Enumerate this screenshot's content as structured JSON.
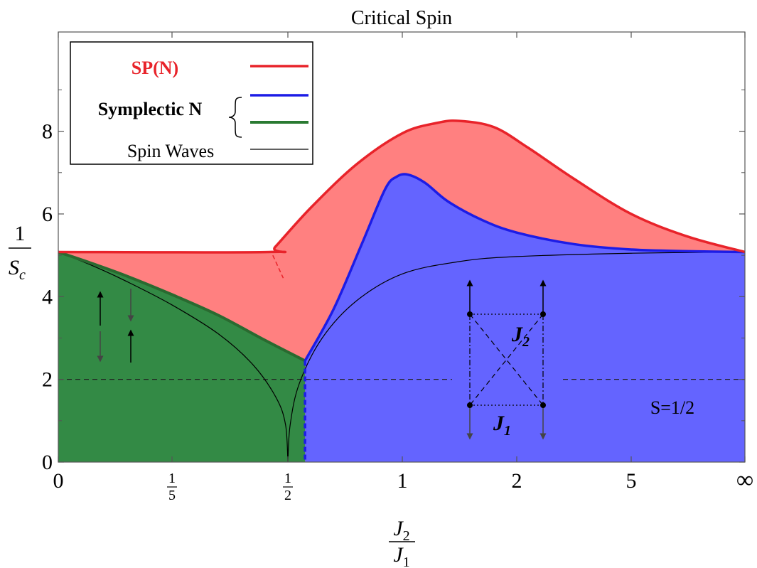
{
  "chart_data": {
    "type": "area",
    "title": "Critical Spin",
    "xlabel": {
      "numerator": "J",
      "numerator_sub": "2",
      "denominator": "J",
      "denominator_sub": "1"
    },
    "ylabel": {
      "numerator": "1",
      "denominator": "S",
      "denominator_sub": "c"
    },
    "ylim": [
      0,
      10.4
    ],
    "xlim": [
      0,
      6
    ],
    "yticks": [
      "0",
      "2",
      "4",
      "6",
      "8"
    ],
    "xticks": [
      {
        "pos": 0,
        "label": "0"
      },
      {
        "pos": 1,
        "num": "1",
        "den": "5"
      },
      {
        "pos": 2,
        "num": "1",
        "den": "2"
      },
      {
        "pos": 3,
        "label": "1"
      },
      {
        "pos": 4,
        "label": "2"
      },
      {
        "pos": 5,
        "label": "5"
      },
      {
        "pos": 6,
        "label": "∞"
      }
    ],
    "grid": false,
    "legend": {
      "placement": "top-left",
      "entries": [
        {
          "name": "SP(N)",
          "color": "#e8232a"
        },
        {
          "name": "Symplectic N",
          "colors": [
            "#1c1ce6",
            "#2a7a32"
          ]
        },
        {
          "name": "Spin Waves",
          "color": "#000000"
        }
      ]
    },
    "series": [
      {
        "name": "SP(N)",
        "color": "#e8232a",
        "fill": "#ff8080",
        "x": [
          0,
          1.84,
          1.89,
          2.2,
          2.6,
          3.0,
          3.3,
          3.5,
          3.8,
          4.1,
          4.5,
          5.0,
          5.5,
          6.0
        ],
        "y": [
          5.08,
          5.08,
          5.2,
          6.15,
          7.2,
          7.95,
          8.2,
          8.25,
          8.1,
          7.6,
          6.85,
          6.0,
          5.45,
          5.08
        ]
      },
      {
        "name": "Symplectic N (blue)",
        "color": "#1c1ce6",
        "fill": "#6464ff",
        "x": [
          2.15,
          2.4,
          2.65,
          2.85,
          2.95,
          3.05,
          3.2,
          3.4,
          3.7,
          4.0,
          4.5,
          5.0,
          5.5,
          6.0
        ],
        "y": [
          2.45,
          3.7,
          5.3,
          6.6,
          6.9,
          6.95,
          6.75,
          6.3,
          5.85,
          5.55,
          5.27,
          5.14,
          5.1,
          5.08
        ]
      },
      {
        "name": "Symplectic N (green)",
        "color": "#2a7a32",
        "fill": "#338a45",
        "x": [
          0,
          0.3,
          0.6,
          1.0,
          1.4,
          1.8,
          2.15
        ],
        "y": [
          5.08,
          4.8,
          4.5,
          4.05,
          3.55,
          2.95,
          2.45
        ]
      },
      {
        "name": "Spin Waves",
        "color": "#000000",
        "x_left": [
          0,
          0.3,
          0.6,
          1.0,
          1.4,
          1.7,
          1.9,
          1.98,
          2.0
        ],
        "y_left": [
          5.08,
          4.75,
          4.37,
          3.8,
          3.1,
          2.35,
          1.55,
          0.9,
          0
        ],
        "x_right": [
          2.0,
          2.02,
          2.1,
          2.3,
          2.6,
          3.0,
          3.5,
          4.0,
          5.0,
          6.0
        ],
        "y_right": [
          0,
          0.9,
          1.9,
          3.0,
          3.9,
          4.55,
          4.85,
          4.97,
          5.05,
          5.08
        ]
      }
    ],
    "reference_lines": [
      {
        "y": 2,
        "style": "dashed",
        "label": "S=1/2"
      }
    ],
    "annotations": {
      "inset_labels": [
        {
          "text": "J",
          "sub": "2"
        },
        {
          "text": "J",
          "sub": "1"
        }
      ]
    }
  }
}
